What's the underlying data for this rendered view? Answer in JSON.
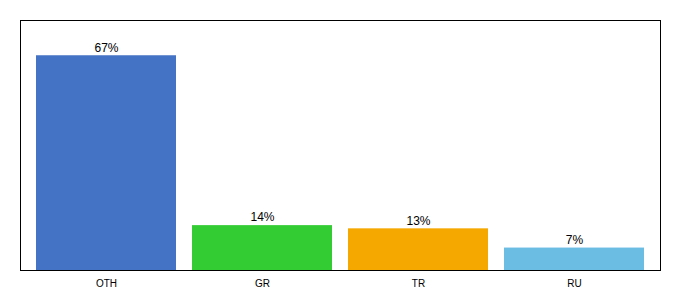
{
  "chart_data": {
    "type": "bar",
    "categories": [
      "OTH",
      "GR",
      "TR",
      "RU"
    ],
    "values": [
      67,
      14,
      13,
      7
    ],
    "value_labels": [
      "67%",
      "14%",
      "13%",
      "7%"
    ],
    "colors": [
      "#4472c4",
      "#33cc33",
      "#f5a800",
      "#6bbde3"
    ],
    "ylim": [
      0,
      78
    ],
    "grid": false,
    "data_labels": true,
    "tick_labels": "x"
  }
}
